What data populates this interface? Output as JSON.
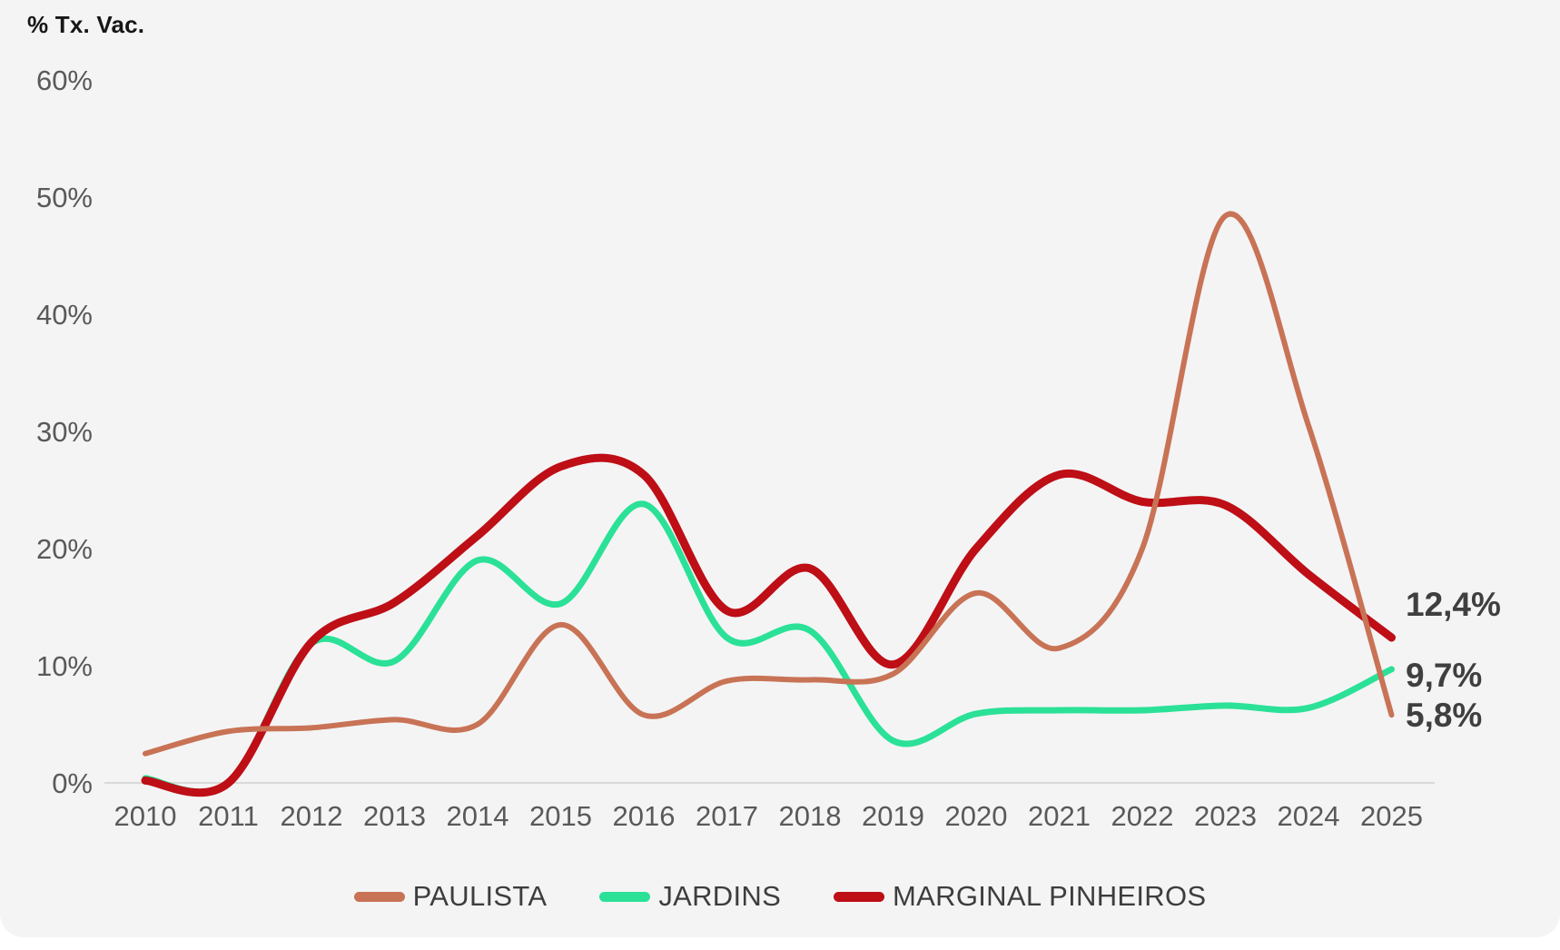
{
  "chart_data": {
    "type": "line",
    "title": "% Tx. Vac.",
    "x": [
      "2010",
      "2011",
      "2012",
      "2013",
      "2014",
      "2015",
      "2016",
      "2017",
      "2018",
      "2019",
      "2020",
      "2021",
      "2022",
      "2023",
      "2024",
      "2025"
    ],
    "y_ticks": [
      "0%",
      "10%",
      "20%",
      "30%",
      "40%",
      "50%",
      "60%"
    ],
    "ylim": [
      0,
      60
    ],
    "y_tick_step": 10,
    "gridlines": "baseline-only",
    "legend_position": "bottom",
    "line_smoothing": true,
    "series": [
      {
        "name": "PAULISTA",
        "color": "#c87355",
        "stroke_width": 6,
        "end_label": "5,8%",
        "values": [
          2.5,
          4.4,
          4.7,
          5.4,
          5.0,
          13.5,
          5.8,
          8.7,
          8.8,
          9.3,
          16.2,
          11.5,
          20.0,
          48.4,
          30.5,
          5.8
        ]
      },
      {
        "name": "JARDINS",
        "color": "#2be197",
        "stroke_width": 7,
        "end_label": "9,7%",
        "values": [
          0.4,
          0.0,
          11.9,
          10.4,
          19.0,
          15.3,
          23.8,
          12.4,
          13.0,
          3.6,
          5.9,
          6.2,
          6.2,
          6.6,
          6.4,
          9.7
        ]
      },
      {
        "name": "MARGINAL PINHEIROS",
        "color": "#be0e16",
        "stroke_width": 9,
        "end_label": "12,4%",
        "values": [
          0.2,
          0.0,
          12.0,
          15.4,
          21.1,
          27.0,
          26.3,
          14.7,
          18.3,
          10.1,
          20.0,
          26.3,
          24.0,
          23.7,
          17.8,
          12.4
        ]
      }
    ],
    "baseline_color": "#d9d9d9",
    "axis_text_color": "#595959",
    "end_label_color": "#3f3f3f"
  }
}
